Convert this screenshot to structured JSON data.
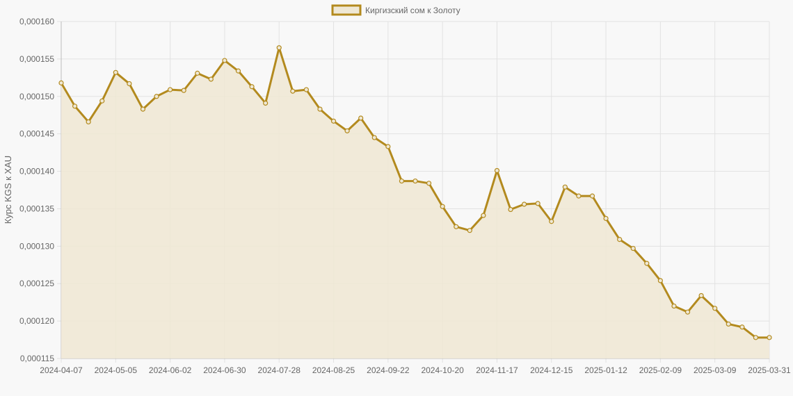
{
  "chart_data": {
    "type": "area",
    "legend_position": "top",
    "grid": true,
    "ylabel": "Курс KGS к XAU",
    "ylim": [
      0.000115,
      0.00016
    ],
    "y_ticks": [
      "0,000160",
      "0,000155",
      "0,000150",
      "0,000145",
      "0,000140",
      "0,000135",
      "0,000130",
      "0,000125",
      "0,000120",
      "0,000115"
    ],
    "x_tick_labels": [
      "2024-04-07",
      "2024-05-05",
      "2024-06-02",
      "2024-06-30",
      "2024-07-28",
      "2024-08-25",
      "2024-09-22",
      "2024-10-20",
      "2024-11-17",
      "2024-12-15",
      "2025-01-12",
      "2025-02-09",
      "2025-03-09",
      "2025-03-31"
    ],
    "colors": {
      "line": "#b38a1e",
      "fill": "#efe8d5",
      "grid": "#e2e2e2",
      "axis": "#bbbbbb"
    },
    "series": [
      {
        "name": "Киргизский сом к Золоту",
        "values": [
          0.0001518,
          0.0001487,
          0.0001466,
          0.0001494,
          0.0001532,
          0.0001517,
          0.0001483,
          0.00015,
          0.0001509,
          0.0001508,
          0.0001531,
          0.0001523,
          0.0001548,
          0.0001534,
          0.0001513,
          0.0001491,
          0.0001565,
          0.0001507,
          0.0001509,
          0.0001483,
          0.0001467,
          0.0001454,
          0.0001471,
          0.0001445,
          0.0001433,
          0.0001387,
          0.0001387,
          0.0001384,
          0.0001353,
          0.0001326,
          0.0001321,
          0.0001341,
          0.0001401,
          0.0001349,
          0.0001356,
          0.0001357,
          0.0001333,
          0.0001379,
          0.0001367,
          0.0001367,
          0.0001337,
          0.0001309,
          0.0001297,
          0.0001277,
          0.0001254,
          0.000122,
          0.0001212,
          0.0001234,
          0.0001217,
          0.0001196,
          0.0001192,
          0.0001178,
          0.0001178
        ]
      }
    ]
  }
}
